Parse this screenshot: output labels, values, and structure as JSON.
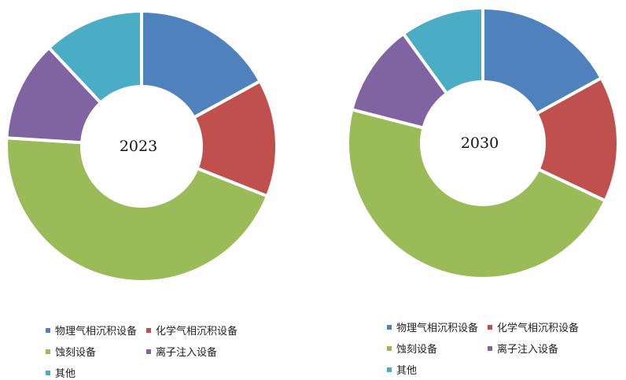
{
  "chart_data": [
    {
      "type": "pie",
      "title": "2023",
      "categories": [
        "物理气相沉积设备",
        "化学气相沉积设备",
        "蚀刻设备",
        "离子注入设备",
        "其他"
      ],
      "values": [
        17,
        14,
        45,
        12,
        12
      ],
      "colors": [
        "#4f81bd",
        "#c0504d",
        "#9bbb59",
        "#8064a2",
        "#4bacc6"
      ],
      "legend": "bottom"
    },
    {
      "type": "pie",
      "title": "2030",
      "categories": [
        "物理气相沉积设备",
        "化学气相沉积设备",
        "蚀刻设备",
        "离子注入设备",
        "其他"
      ],
      "values": [
        17,
        15,
        47,
        11,
        10
      ],
      "colors": [
        "#4f81bd",
        "#c0504d",
        "#9bbb59",
        "#8064a2",
        "#4bacc6"
      ],
      "legend": "bottom"
    }
  ]
}
